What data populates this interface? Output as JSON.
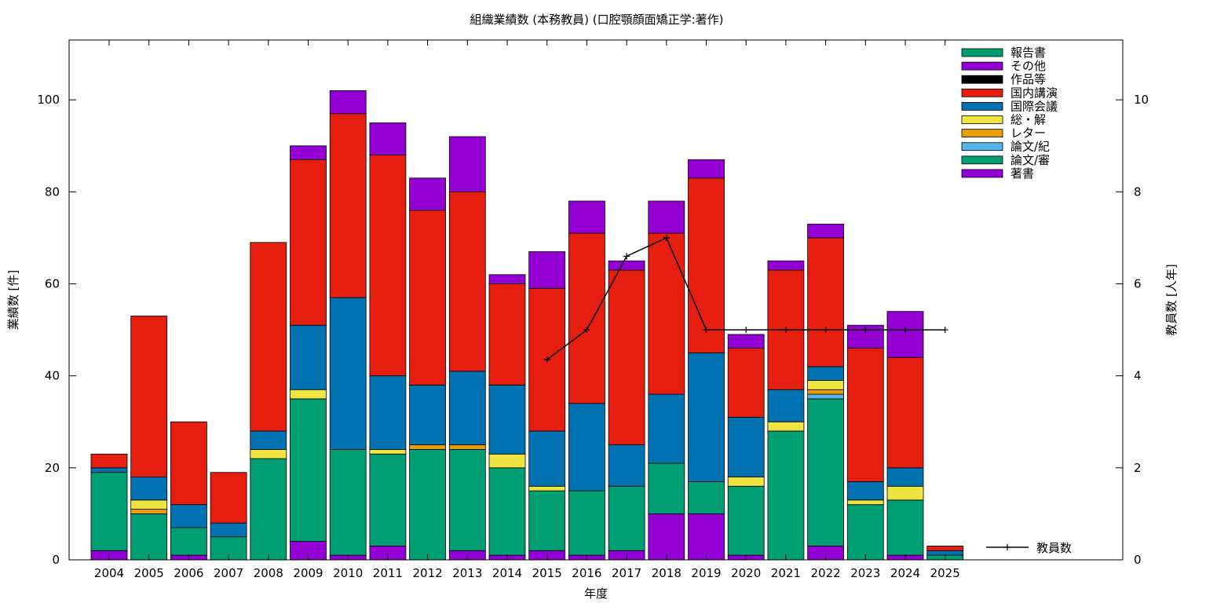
{
  "chart_data": {
    "type": "bar",
    "stacked": true,
    "title": "組織業績数 (本務教員) (口腔顎顔面矯正学:著作)",
    "xlabel": "年度",
    "ylabel": "業績数 [件]",
    "y2label": "教員数 [人年]",
    "ylim": [
      0,
      113
    ],
    "y2lim": [
      0,
      11.3
    ],
    "yticks": [
      0,
      20,
      40,
      60,
      80,
      100
    ],
    "y2ticks": [
      0,
      2,
      4,
      6,
      8,
      10
    ],
    "grid": false,
    "legend_position": "top-right",
    "categories": [
      "2004",
      "2005",
      "2006",
      "2007",
      "2008",
      "2009",
      "2010",
      "2011",
      "2012",
      "2013",
      "2014",
      "2015",
      "2016",
      "2017",
      "2018",
      "2019",
      "2020",
      "2021",
      "2022",
      "2023",
      "2024",
      "2025"
    ],
    "series": [
      {
        "name": "著書",
        "color": "#9400d3",
        "values": [
          2,
          0,
          1,
          0,
          0,
          4,
          1,
          3,
          0,
          2,
          1,
          2,
          1,
          2,
          10,
          10,
          1,
          0,
          3,
          0,
          1,
          0
        ]
      },
      {
        "name": "論文/審",
        "color": "#009e73",
        "values": [
          17,
          10,
          6,
          5,
          22,
          31,
          23,
          20,
          24,
          22,
          19,
          13,
          14,
          14,
          11,
          7,
          15,
          28,
          32,
          12,
          12,
          1
        ]
      },
      {
        "name": "論文/紀",
        "color": "#56b4e9",
        "values": [
          0,
          0,
          0,
          0,
          0,
          0,
          0,
          0,
          0,
          0,
          0,
          0,
          0,
          0,
          0,
          0,
          0,
          0,
          1,
          0,
          0,
          0
        ]
      },
      {
        "name": "レター",
        "color": "#e69f00",
        "values": [
          0,
          1,
          0,
          0,
          0,
          0,
          0,
          0,
          1,
          1,
          0,
          0,
          0,
          0,
          0,
          0,
          0,
          0,
          1,
          0,
          0,
          0
        ]
      },
      {
        "name": "総・解",
        "color": "#f0e442",
        "values": [
          0,
          2,
          0,
          0,
          2,
          2,
          0,
          1,
          0,
          0,
          3,
          1,
          0,
          0,
          0,
          0,
          2,
          2,
          2,
          1,
          3,
          0
        ]
      },
      {
        "name": "国際会議",
        "color": "#0072b2",
        "values": [
          1,
          5,
          5,
          3,
          4,
          14,
          33,
          16,
          13,
          16,
          15,
          12,
          19,
          9,
          15,
          28,
          13,
          7,
          3,
          4,
          4,
          1
        ]
      },
      {
        "name": "国内講演",
        "color": "#e51e10",
        "values": [
          3,
          35,
          18,
          11,
          41,
          36,
          40,
          48,
          38,
          39,
          22,
          31,
          37,
          38,
          35,
          38,
          15,
          26,
          28,
          29,
          24,
          1
        ]
      },
      {
        "name": "作品等",
        "color": "#000000",
        "values": [
          0,
          0,
          0,
          0,
          0,
          0,
          0,
          0,
          0,
          0,
          0,
          0,
          0,
          0,
          0,
          0,
          0,
          0,
          0,
          0,
          0,
          0
        ]
      },
      {
        "name": "その他",
        "color": "#9400d3",
        "values": [
          0,
          0,
          0,
          0,
          0,
          3,
          5,
          7,
          7,
          12,
          2,
          8,
          7,
          2,
          7,
          4,
          3,
          2,
          3,
          5,
          10,
          0
        ]
      },
      {
        "name": "報告書",
        "color": "#009e73",
        "values": [
          0,
          0,
          0,
          0,
          0,
          0,
          0,
          0,
          0,
          0,
          0,
          0,
          0,
          0,
          0,
          0,
          0,
          0,
          0,
          0,
          0,
          0
        ]
      }
    ],
    "legend_order": [
      "報告書",
      "その他",
      "作品等",
      "国内講演",
      "国際会議",
      "総・解",
      "レター",
      "論文/紀",
      "論文/審",
      "著書"
    ],
    "line_series": {
      "name": "教員数",
      "axis": "y2",
      "color": "#000000",
      "x": [
        "2015",
        "2016",
        "2017",
        "2018",
        "2019",
        "2020",
        "2021",
        "2022",
        "2023",
        "2024",
        "2025"
      ],
      "values": [
        4.35,
        5,
        6.6,
        7,
        5,
        5,
        5,
        5,
        5,
        5,
        5
      ]
    }
  }
}
